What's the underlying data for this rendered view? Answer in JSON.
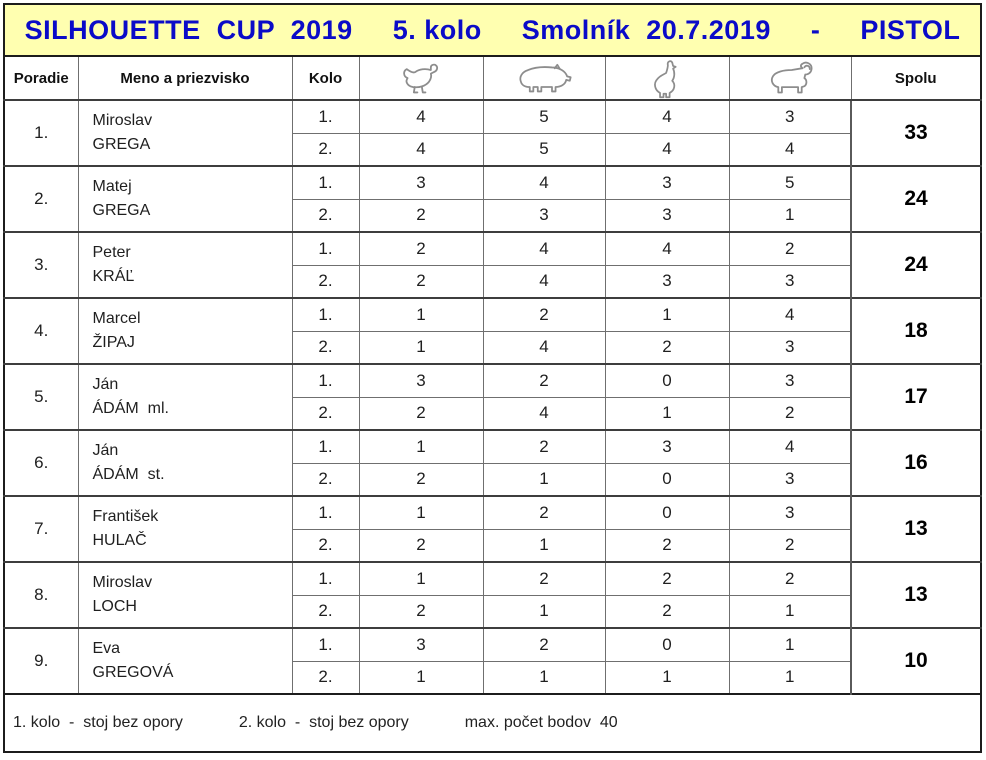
{
  "title": {
    "parts": [
      "SILHOUETTE  CUP  2019",
      "5. kolo",
      "Smolník  20.7.2019",
      "-",
      "PISTOL"
    ],
    "bg_color": "#FFFFB0",
    "text_color": "#0B0BC8"
  },
  "table": {
    "columns": {
      "poradie": "Poradie",
      "meno": "Meno a priezvisko",
      "kolo": "Kolo",
      "animal_icons": [
        "chicken-icon",
        "boar-icon",
        "turkey-icon",
        "ram-icon"
      ],
      "spolu": "Spolu"
    },
    "round_labels": [
      "1.",
      "2."
    ],
    "players": [
      {
        "rank": "1.",
        "first_name": "Miroslav",
        "last_name": "GREGA",
        "rounds": [
          [
            4,
            5,
            4,
            3
          ],
          [
            4,
            5,
            4,
            4
          ]
        ],
        "total": "33"
      },
      {
        "rank": "2.",
        "first_name": "Matej",
        "last_name": "GREGA",
        "rounds": [
          [
            3,
            4,
            3,
            5
          ],
          [
            2,
            3,
            3,
            1
          ]
        ],
        "total": "24"
      },
      {
        "rank": "3.",
        "first_name": "Peter",
        "last_name": "KRÁĽ",
        "rounds": [
          [
            2,
            4,
            4,
            2
          ],
          [
            2,
            4,
            3,
            3
          ]
        ],
        "total": "24"
      },
      {
        "rank": "4.",
        "first_name": "Marcel",
        "last_name": "ŽIPAJ",
        "rounds": [
          [
            1,
            2,
            1,
            4
          ],
          [
            1,
            4,
            2,
            3
          ]
        ],
        "total": "18"
      },
      {
        "rank": "5.",
        "first_name": "Ján",
        "last_name": "ÁDÁM  ml.",
        "rounds": [
          [
            3,
            2,
            0,
            3
          ],
          [
            2,
            4,
            1,
            2
          ]
        ],
        "total": "17"
      },
      {
        "rank": "6.",
        "first_name": "Ján",
        "last_name": "ÁDÁM  st.",
        "rounds": [
          [
            1,
            2,
            3,
            4
          ],
          [
            2,
            1,
            0,
            3
          ]
        ],
        "total": "16"
      },
      {
        "rank": "7.",
        "first_name": "František",
        "last_name": "HULAČ",
        "rounds": [
          [
            1,
            2,
            0,
            3
          ],
          [
            2,
            1,
            2,
            2
          ]
        ],
        "total": "13"
      },
      {
        "rank": "8.",
        "first_name": "Miroslav",
        "last_name": "LOCH",
        "rounds": [
          [
            1,
            2,
            2,
            2
          ],
          [
            2,
            1,
            2,
            1
          ]
        ],
        "total": "13"
      },
      {
        "rank": "9.",
        "first_name": "Eva",
        "last_name": "GREGOVÁ",
        "rounds": [
          [
            3,
            2,
            0,
            1
          ],
          [
            1,
            1,
            1,
            1
          ]
        ],
        "total": "10"
      }
    ]
  },
  "footer": {
    "note1": "1. kolo  -  stoj bez opory",
    "note2": "2. kolo  -  stoj bez opory",
    "note3": "max. počet bodov  40"
  }
}
